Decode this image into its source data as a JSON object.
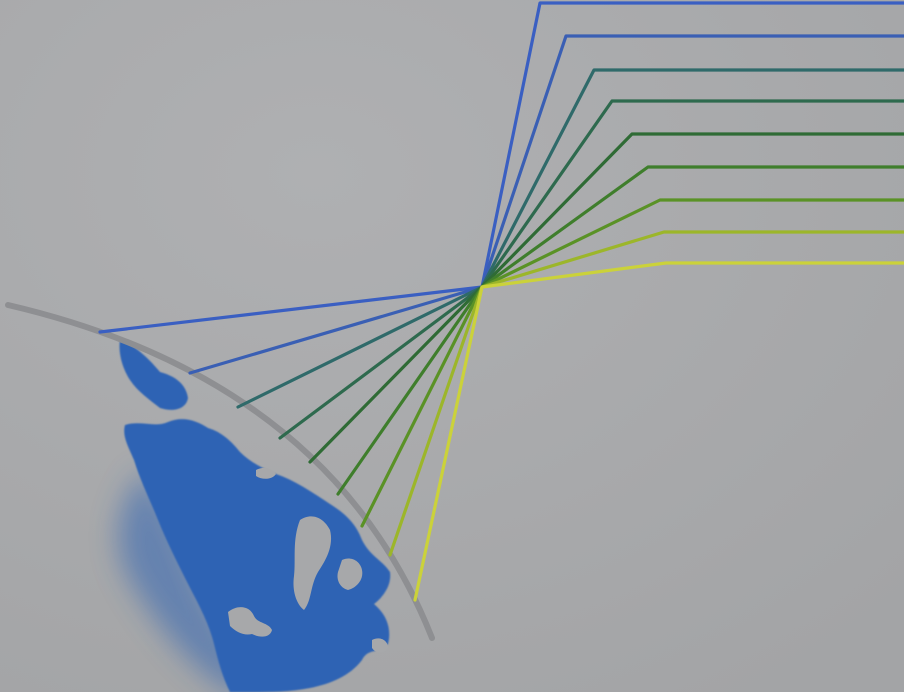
{
  "artwork": {
    "subject": "earth-with-converging-light-rays",
    "background_color": "#a7a8aa",
    "horizon_color": "#8e8f92",
    "land_color": "#2f64b4",
    "ray_colors": [
      "#3a5fc2",
      "#3a5fb4",
      "#2f6a6a",
      "#2e6a4e",
      "#2f6b35",
      "#3f7e2c",
      "#5a9226",
      "#9cb62a",
      "#cbd23a"
    ]
  }
}
